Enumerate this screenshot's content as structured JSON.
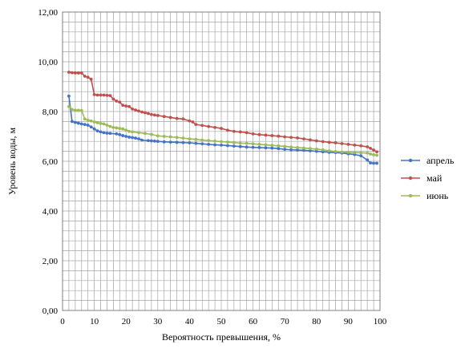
{
  "chart_data": {
    "type": "line",
    "title": "",
    "xlabel": "Вероятность превышения, %",
    "ylabel": "Уровень воды, м",
    "xlim": [
      0,
      100
    ],
    "ylim": [
      0,
      12
    ],
    "x_ticks": [
      "0",
      "10",
      "20",
      "30",
      "40",
      "50",
      "60",
      "70",
      "80",
      "90",
      "100"
    ],
    "y_ticks": [
      "0,00",
      "2,00",
      "4,00",
      "6,00",
      "8,00",
      "10,00",
      "12,00"
    ],
    "grid": true,
    "legend_position": "right",
    "series": [
      {
        "name": "апрель",
        "color": "#4472C4",
        "points": [
          [
            2,
            8.62
          ],
          [
            3,
            7.6
          ],
          [
            4,
            7.56
          ],
          [
            5,
            7.53
          ],
          [
            6,
            7.5
          ],
          [
            7,
            7.48
          ],
          [
            8,
            7.45
          ],
          [
            9,
            7.38
          ],
          [
            10,
            7.3
          ],
          [
            11,
            7.22
          ],
          [
            12,
            7.18
          ],
          [
            13,
            7.15
          ],
          [
            14,
            7.13
          ],
          [
            15,
            7.12
          ],
          [
            17,
            7.1
          ],
          [
            18,
            7.07
          ],
          [
            19,
            7.03
          ],
          [
            20,
            7.0
          ],
          [
            21,
            6.97
          ],
          [
            22,
            6.95
          ],
          [
            23,
            6.93
          ],
          [
            24,
            6.9
          ],
          [
            25,
            6.85
          ],
          [
            27,
            6.83
          ],
          [
            28,
            6.82
          ],
          [
            29,
            6.81
          ],
          [
            30,
            6.8
          ],
          [
            32,
            6.78
          ],
          [
            34,
            6.77
          ],
          [
            36,
            6.76
          ],
          [
            38,
            6.75
          ],
          [
            40,
            6.74
          ],
          [
            42,
            6.72
          ],
          [
            44,
            6.7
          ],
          [
            46,
            6.68
          ],
          [
            48,
            6.66
          ],
          [
            50,
            6.65
          ],
          [
            52,
            6.63
          ],
          [
            54,
            6.61
          ],
          [
            56,
            6.59
          ],
          [
            58,
            6.57
          ],
          [
            60,
            6.56
          ],
          [
            62,
            6.55
          ],
          [
            64,
            6.54
          ],
          [
            66,
            6.53
          ],
          [
            68,
            6.51
          ],
          [
            70,
            6.48
          ],
          [
            72,
            6.46
          ],
          [
            74,
            6.45
          ],
          [
            76,
            6.44
          ],
          [
            78,
            6.42
          ],
          [
            80,
            6.4
          ],
          [
            82,
            6.38
          ],
          [
            84,
            6.36
          ],
          [
            86,
            6.35
          ],
          [
            88,
            6.33
          ],
          [
            90,
            6.3
          ],
          [
            92,
            6.27
          ],
          [
            94,
            6.22
          ],
          [
            96,
            6.05
          ],
          [
            97,
            5.93
          ],
          [
            98,
            5.92
          ],
          [
            99,
            5.92
          ]
        ]
      },
      {
        "name": "май",
        "color": "#C0504D",
        "points": [
          [
            2,
            9.58
          ],
          [
            3,
            9.56
          ],
          [
            4,
            9.55
          ],
          [
            5,
            9.55
          ],
          [
            6,
            9.55
          ],
          [
            7,
            9.42
          ],
          [
            8,
            9.38
          ],
          [
            9,
            9.3
          ],
          [
            10,
            8.68
          ],
          [
            11,
            8.66
          ],
          [
            12,
            8.66
          ],
          [
            13,
            8.66
          ],
          [
            14,
            8.65
          ],
          [
            15,
            8.64
          ],
          [
            16,
            8.5
          ],
          [
            17,
            8.42
          ],
          [
            18,
            8.38
          ],
          [
            19,
            8.25
          ],
          [
            20,
            8.22
          ],
          [
            21,
            8.2
          ],
          [
            22,
            8.1
          ],
          [
            23,
            8.06
          ],
          [
            24,
            8.02
          ],
          [
            25,
            7.98
          ],
          [
            26,
            7.95
          ],
          [
            27,
            7.92
          ],
          [
            28,
            7.88
          ],
          [
            29,
            7.86
          ],
          [
            30,
            7.84
          ],
          [
            32,
            7.8
          ],
          [
            34,
            7.76
          ],
          [
            36,
            7.72
          ],
          [
            38,
            7.7
          ],
          [
            40,
            7.62
          ],
          [
            41,
            7.58
          ],
          [
            42,
            7.48
          ],
          [
            44,
            7.44
          ],
          [
            46,
            7.4
          ],
          [
            48,
            7.36
          ],
          [
            50,
            7.32
          ],
          [
            52,
            7.25
          ],
          [
            54,
            7.2
          ],
          [
            56,
            7.18
          ],
          [
            58,
            7.15
          ],
          [
            60,
            7.1
          ],
          [
            62,
            7.07
          ],
          [
            64,
            7.05
          ],
          [
            66,
            7.03
          ],
          [
            68,
            7.01
          ],
          [
            70,
            6.98
          ],
          [
            72,
            6.96
          ],
          [
            74,
            6.94
          ],
          [
            76,
            6.9
          ],
          [
            78,
            6.86
          ],
          [
            80,
            6.82
          ],
          [
            82,
            6.79
          ],
          [
            84,
            6.76
          ],
          [
            86,
            6.74
          ],
          [
            88,
            6.71
          ],
          [
            90,
            6.68
          ],
          [
            92,
            6.65
          ],
          [
            94,
            6.62
          ],
          [
            96,
            6.58
          ],
          [
            97,
            6.52
          ],
          [
            98,
            6.45
          ],
          [
            99,
            6.38
          ]
        ]
      },
      {
        "name": "июнь",
        "color": "#9BBB59",
        "points": [
          [
            2,
            8.2
          ],
          [
            3,
            8.08
          ],
          [
            4,
            8.05
          ],
          [
            5,
            8.05
          ],
          [
            6,
            8.04
          ],
          [
            7,
            7.7
          ],
          [
            8,
            7.65
          ],
          [
            9,
            7.62
          ],
          [
            10,
            7.58
          ],
          [
            11,
            7.55
          ],
          [
            12,
            7.52
          ],
          [
            13,
            7.5
          ],
          [
            14,
            7.45
          ],
          [
            15,
            7.4
          ],
          [
            16,
            7.36
          ],
          [
            17,
            7.34
          ],
          [
            18,
            7.32
          ],
          [
            19,
            7.3
          ],
          [
            20,
            7.25
          ],
          [
            21,
            7.2
          ],
          [
            22,
            7.18
          ],
          [
            24,
            7.15
          ],
          [
            26,
            7.12
          ],
          [
            28,
            7.08
          ],
          [
            30,
            7.02
          ],
          [
            32,
            7.0
          ],
          [
            34,
            6.98
          ],
          [
            36,
            6.96
          ],
          [
            38,
            6.93
          ],
          [
            40,
            6.9
          ],
          [
            42,
            6.88
          ],
          [
            44,
            6.85
          ],
          [
            46,
            6.83
          ],
          [
            48,
            6.81
          ],
          [
            50,
            6.79
          ],
          [
            52,
            6.77
          ],
          [
            54,
            6.75
          ],
          [
            56,
            6.73
          ],
          [
            58,
            6.72
          ],
          [
            60,
            6.7
          ],
          [
            62,
            6.68
          ],
          [
            64,
            6.66
          ],
          [
            66,
            6.64
          ],
          [
            68,
            6.62
          ],
          [
            70,
            6.6
          ],
          [
            72,
            6.57
          ],
          [
            74,
            6.55
          ],
          [
            76,
            6.53
          ],
          [
            78,
            6.51
          ],
          [
            80,
            6.49
          ],
          [
            82,
            6.46
          ],
          [
            84,
            6.42
          ],
          [
            86,
            6.39
          ],
          [
            88,
            6.37
          ],
          [
            90,
            6.36
          ],
          [
            92,
            6.35
          ],
          [
            94,
            6.34
          ],
          [
            96,
            6.33
          ],
          [
            97,
            6.29
          ],
          [
            98,
            6.26
          ],
          [
            99,
            6.24
          ]
        ]
      }
    ]
  }
}
